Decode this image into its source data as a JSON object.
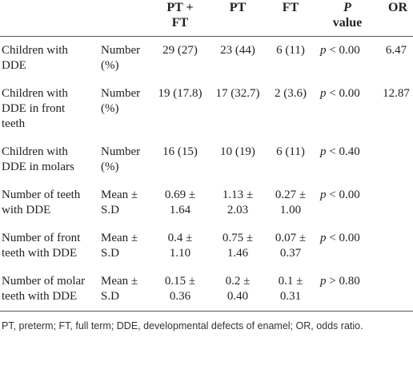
{
  "table": {
    "header": [
      "PT + FT",
      "PT",
      "FT",
      "P value",
      "OR"
    ],
    "rows": [
      {
        "label": "Children with DDE",
        "measure": "Number (%)",
        "values": [
          "29 (27)",
          "23 (44)",
          "6 (11)",
          "p < 0.00",
          "6.47"
        ]
      },
      {
        "label": "Children with DDE in front teeth",
        "measure": "Number (%)",
        "values": [
          "19 (17.8)",
          "17 (32.7)",
          "2 (3.6)",
          "p < 0.00",
          "12.87"
        ]
      },
      {
        "label": "Children with DDE in molars",
        "measure": "Number (%)",
        "values": [
          "16 (15)",
          "10 (19)",
          "6 (11)",
          "p < 0.40"
        ]
      },
      {
        "label": "Number of teeth with DDE",
        "measure": "Mean ± S.D",
        "values": [
          "0.69 ± 1.64",
          "1.13 ± 2.03",
          "0.27 ± 1.00",
          "p < 0.00"
        ]
      },
      {
        "label": "Number of front teeth with DDE",
        "measure": "Mean ± S.D",
        "values": [
          "0.4 ± 1.10",
          "0.75 ± 1.46",
          "0.07 ± 0.37",
          "p < 0.00"
        ]
      },
      {
        "label": "Number of molar teeth with DDE",
        "measure": "Mean ± S.D",
        "values": [
          "0.15 ± 0.36",
          "0.2 ± 0.40",
          "0.1 ± 0.31",
          "p > 0.80"
        ]
      }
    ]
  },
  "footnote": "PT, preterm; FT, full term; DDE, developmental defects of enamel; OR, odds ratio."
}
